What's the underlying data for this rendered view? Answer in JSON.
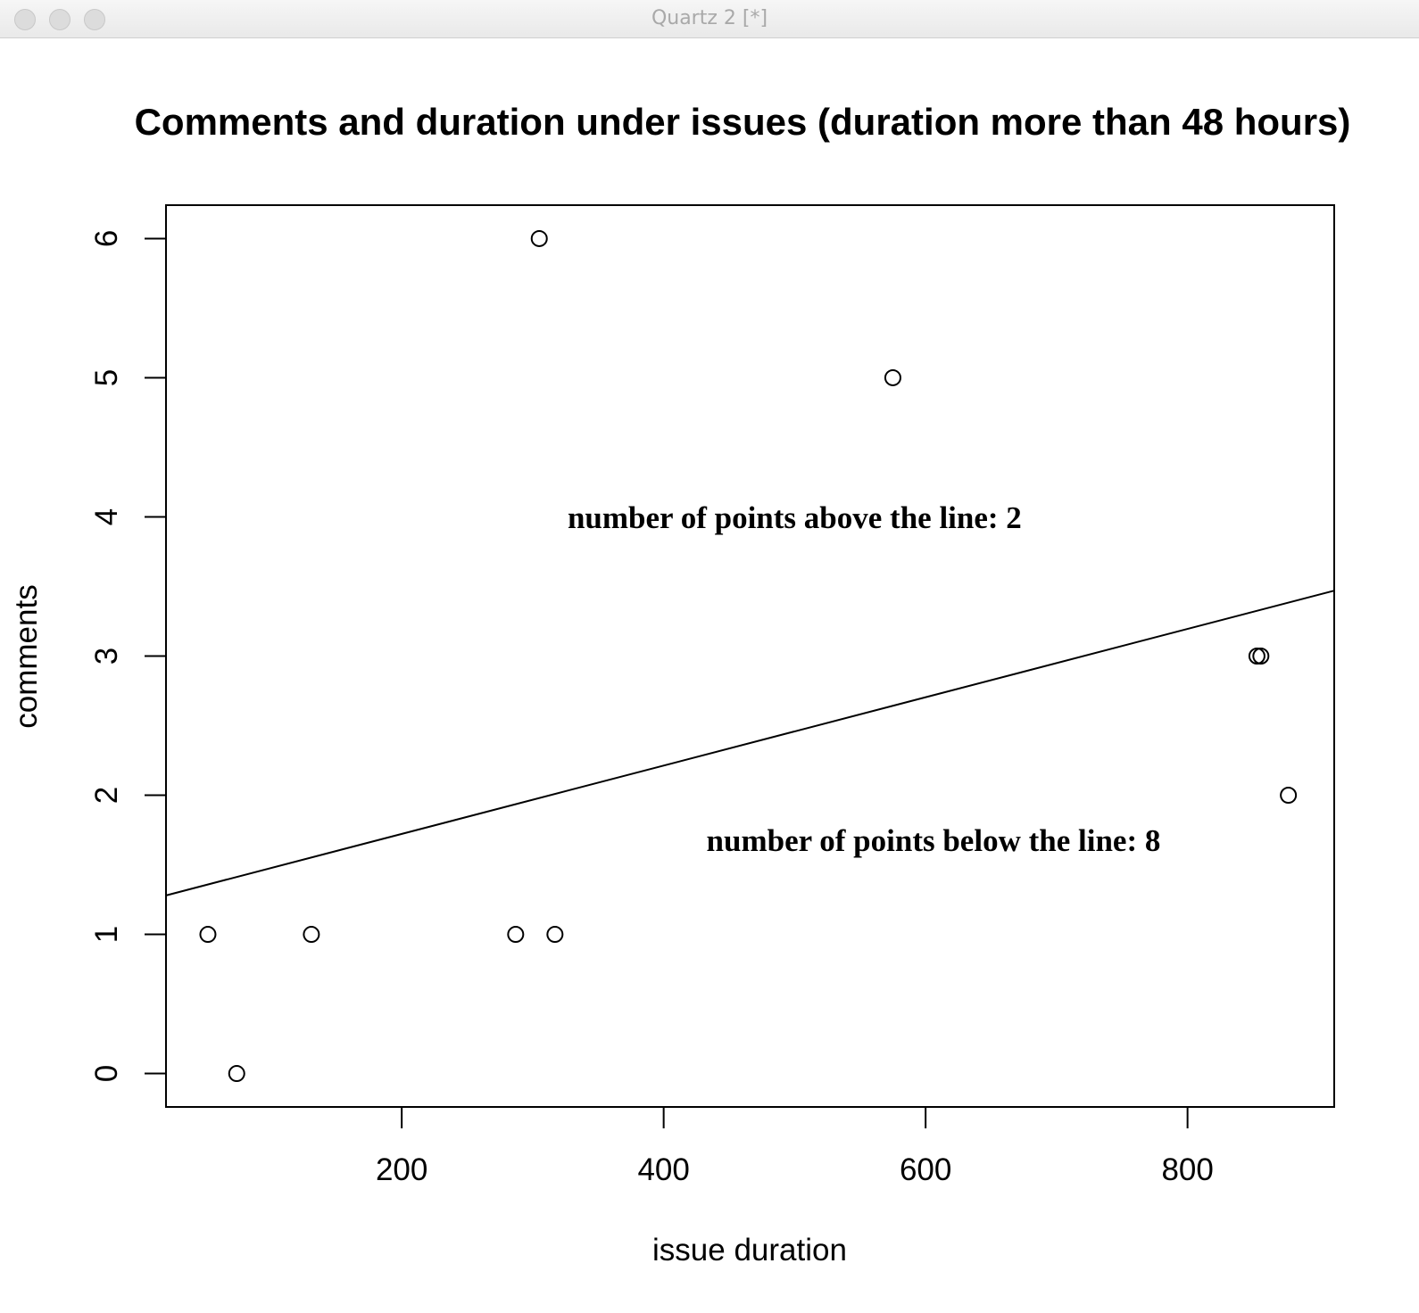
{
  "window": {
    "title": "Quartz 2 [*]"
  },
  "chart_data": {
    "type": "scatter",
    "title": "Comments and duration under issues (duration more than 48 hours)",
    "xlabel": "issue duration",
    "ylabel": "comments",
    "xlim": [
      20,
      912
    ],
    "ylim": [
      -0.24,
      6.24
    ],
    "x_ticks": [
      200,
      400,
      600,
      800
    ],
    "y_ticks": [
      0,
      1,
      2,
      3,
      4,
      5,
      6
    ],
    "grid": false,
    "points": [
      {
        "x": 52,
        "y": 1
      },
      {
        "x": 74,
        "y": 0
      },
      {
        "x": 131,
        "y": 1
      },
      {
        "x": 287,
        "y": 1
      },
      {
        "x": 305,
        "y": 6
      },
      {
        "x": 317,
        "y": 1
      },
      {
        "x": 575,
        "y": 5
      },
      {
        "x": 853,
        "y": 3
      },
      {
        "x": 856,
        "y": 3
      },
      {
        "x": 877,
        "y": 2
      }
    ],
    "fit_line": {
      "x": [
        20,
        912
      ],
      "y": [
        1.28,
        3.47
      ]
    },
    "annotations": [
      {
        "text": "number of points above the line: 2",
        "x": 500,
        "y": 3.92
      },
      {
        "text": "number of points below the line: 8",
        "x": 606,
        "y": 1.6
      }
    ]
  }
}
